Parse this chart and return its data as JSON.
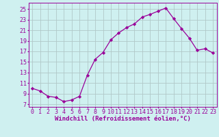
{
  "x": [
    0,
    1,
    2,
    3,
    4,
    5,
    6,
    7,
    8,
    9,
    10,
    11,
    12,
    13,
    14,
    15,
    16,
    17,
    18,
    19,
    20,
    21,
    22,
    23
  ],
  "y": [
    10.0,
    9.5,
    8.5,
    8.3,
    7.5,
    7.8,
    8.5,
    12.5,
    15.5,
    16.8,
    19.2,
    20.5,
    21.5,
    22.2,
    23.5,
    24.0,
    24.6,
    25.2,
    23.2,
    21.3,
    19.5,
    17.2,
    17.5,
    16.7
  ],
  "xlabel": "Windchill (Refroidissement éolien,°C)",
  "xlim": [
    -0.5,
    23.5
  ],
  "ylim": [
    6.5,
    26.2
  ],
  "yticks": [
    7,
    9,
    11,
    13,
    15,
    17,
    19,
    21,
    23,
    25
  ],
  "xticks": [
    0,
    1,
    2,
    3,
    4,
    5,
    6,
    7,
    8,
    9,
    10,
    11,
    12,
    13,
    14,
    15,
    16,
    17,
    18,
    19,
    20,
    21,
    22,
    23
  ],
  "line_color": "#990099",
  "marker": "D",
  "marker_size": 2.2,
  "bg_color": "#cff0f0",
  "grid_color": "#b0c8c8",
  "xlabel_fontsize": 6.5,
  "tick_fontsize": 6.0,
  "tick_color": "#990099",
  "label_color": "#990099"
}
